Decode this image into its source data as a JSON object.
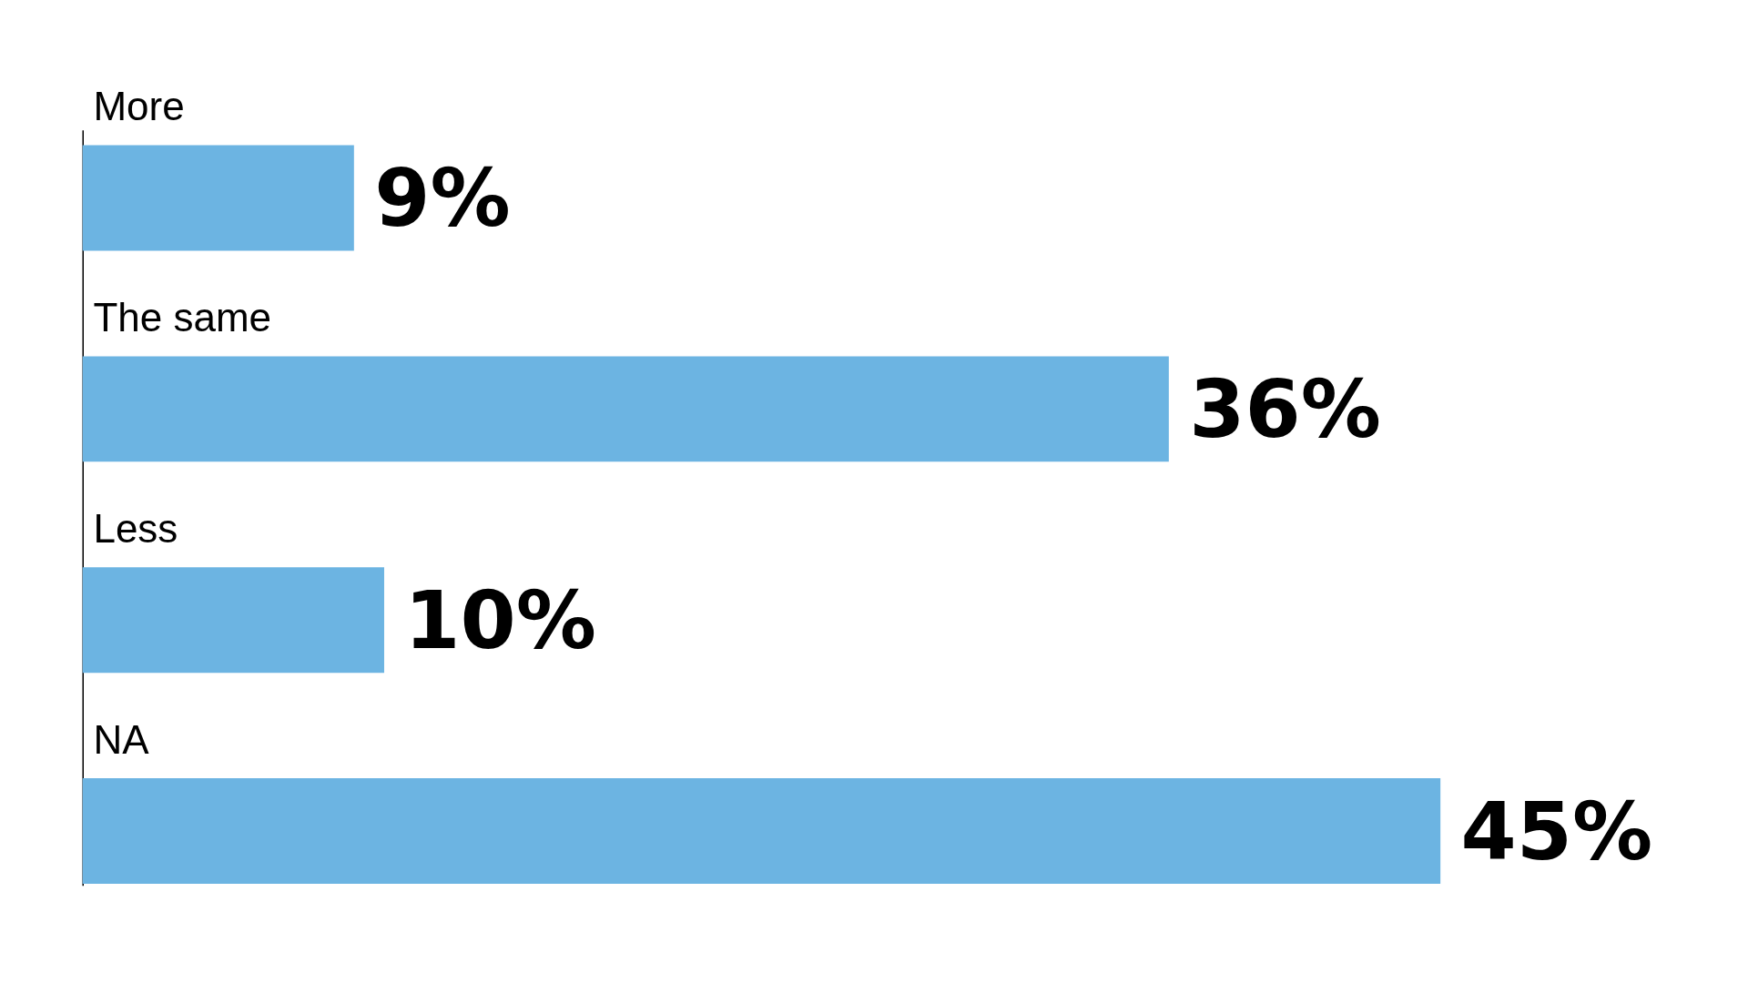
{
  "chart_data": {
    "type": "bar",
    "orientation": "horizontal",
    "categories": [
      "More",
      "The same",
      "Less",
      "NA"
    ],
    "values": [
      9,
      36,
      10,
      45
    ],
    "value_labels": [
      "9%",
      "36%",
      "10%",
      "45%"
    ],
    "color": "#6cb4e2",
    "grid": false,
    "tick_labels": false
  }
}
